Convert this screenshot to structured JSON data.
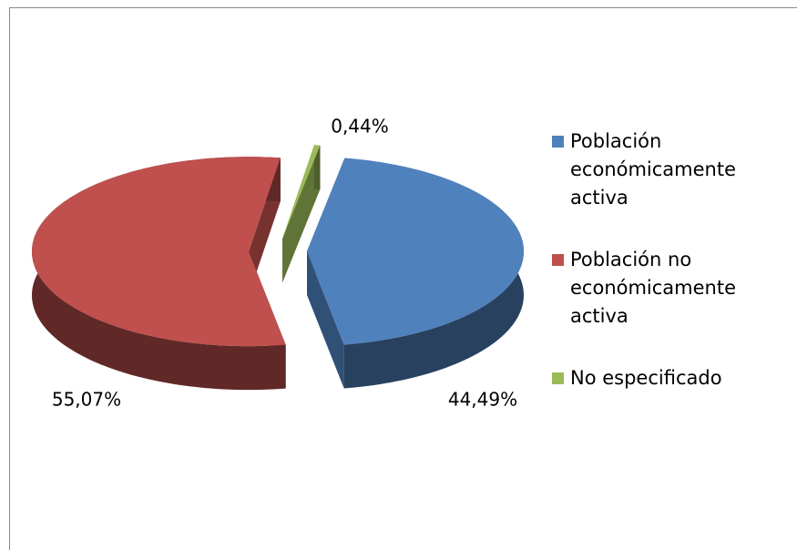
{
  "chart_data": {
    "type": "pie",
    "categories": [
      "Población económicamente activa",
      "Población no económicamente activa",
      "No especificado"
    ],
    "values": [
      44.49,
      55.07,
      0.44
    ],
    "value_labels": [
      "44,49%",
      "55,07%",
      "0,44%"
    ],
    "colors": [
      "#4f81bd",
      "#c0504d",
      "#9bbb59"
    ],
    "legend": "right"
  }
}
